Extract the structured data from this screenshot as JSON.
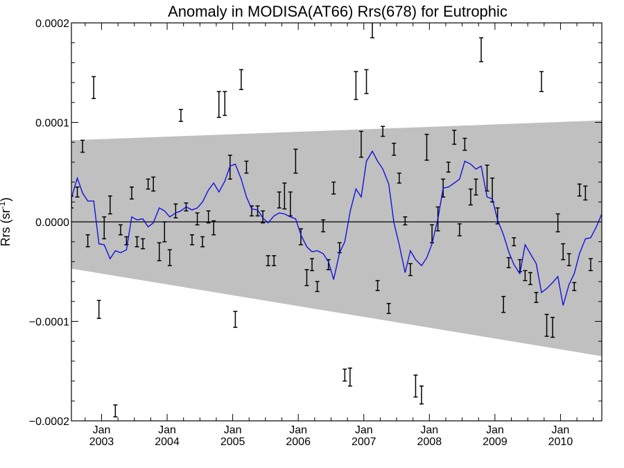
{
  "chart_data": {
    "type": "line",
    "title": "Anomaly in MODISA(AT66) Rrs(678) for Eutrophic",
    "ylabel": "Rrs (sr",
    "ylabel_sup": "-1",
    "ylabel_close": ")",
    "xlabel": "",
    "xlim": [
      2002.54,
      2010.63
    ],
    "ylim": [
      -0.0002,
      0.0002
    ],
    "y_ticks": [
      {
        "value": 0.0002,
        "label": "0.0002"
      },
      {
        "value": 0.0001,
        "label": "0.0001"
      },
      {
        "value": 0.0,
        "label": "0.0000"
      },
      {
        "value": -0.0001,
        "label": "−0.0001"
      },
      {
        "value": -0.0002,
        "label": "−0.0002"
      }
    ],
    "x_ticks": [
      {
        "value": 2003.0,
        "month": "Jan",
        "year": "2003"
      },
      {
        "value": 2004.0,
        "month": "Jan",
        "year": "2004"
      },
      {
        "value": 2005.0,
        "month": "Jan",
        "year": "2005"
      },
      {
        "value": 2006.0,
        "month": "Jan",
        "year": "2006"
      },
      {
        "value": 2007.0,
        "month": "Jan",
        "year": "2007"
      },
      {
        "value": 2008.0,
        "month": "Jan",
        "year": "2008"
      },
      {
        "value": 2009.0,
        "month": "Jan",
        "year": "2009"
      },
      {
        "value": 2010.0,
        "month": "Jan",
        "year": "2010"
      }
    ],
    "grid": false,
    "zero_line": 0.0,
    "band_color": "#c0c0c0",
    "line_color": "#1010dd",
    "errorbar_color": "#000000",
    "prediction_band": {
      "x": [
        2002.54,
        2010.63
      ],
      "upper": [
        8.2e-05,
        0.000102
      ],
      "lower": [
        -4.7e-05,
        -0.000135
      ]
    },
    "series": [
      {
        "type": "line",
        "x": [
          2002.54,
          2002.63,
          2002.71,
          2002.79,
          2002.88,
          2002.96,
          2003.04,
          2003.13,
          2003.21,
          2003.29,
          2003.38,
          2003.46,
          2003.54,
          2003.63,
          2003.71,
          2003.79,
          2003.88,
          2003.96,
          2004.04,
          2004.13,
          2004.21,
          2004.29,
          2004.38,
          2004.46,
          2004.54,
          2004.63,
          2004.71,
          2004.79,
          2004.88,
          2004.96,
          2005.04,
          2005.13,
          2005.21,
          2005.29,
          2005.38,
          2005.46,
          2005.54,
          2005.63,
          2005.71,
          2005.79,
          2005.88,
          2005.96,
          2006.04,
          2006.13,
          2006.21,
          2006.29,
          2006.38,
          2006.46,
          2006.54,
          2006.63,
          2006.71,
          2006.79,
          2006.88,
          2006.96,
          2007.04,
          2007.13,
          2007.21,
          2007.29,
          2007.38,
          2007.46,
          2007.54,
          2007.63,
          2007.71,
          2007.79,
          2007.88,
          2007.96,
          2008.04,
          2008.13,
          2008.21,
          2008.29,
          2008.38,
          2008.46,
          2008.54,
          2008.63,
          2008.71,
          2008.79,
          2008.88,
          2008.96,
          2009.04,
          2009.13,
          2009.21,
          2009.29,
          2009.38,
          2009.46,
          2009.54,
          2009.63,
          2009.71,
          2009.79,
          2009.88,
          2009.96,
          2010.04,
          2010.13,
          2010.21,
          2010.29,
          2010.38,
          2010.46,
          2010.54,
          2010.63
        ],
        "y": [
          2.4e-05,
          4.4e-05,
          2.9e-05,
          2.1e-05,
          2.1e-05,
          -2.2e-05,
          -2.3e-05,
          -3.7e-05,
          -2.9e-05,
          -3.1e-05,
          -2.8e-05,
          5e-06,
          2e-06,
          3e-06,
          -5e-06,
          -1e-06,
          1.4e-05,
          1.1e-05,
          5e-06,
          9e-06,
          1.1e-05,
          1.5e-05,
          1.2e-05,
          1.4e-05,
          2e-05,
          3.2e-05,
          3.9e-05,
          3e-05,
          4.1e-05,
          5.6e-05,
          5.8e-05,
          4.3e-05,
          2.5e-05,
          1.3e-05,
          1.2e-05,
          4e-06,
          -1e-06,
          6e-06,
          9e-06,
          8e-06,
          5e-06,
          3e-06,
          -1.3e-05,
          -2.5e-05,
          -3e-05,
          -2.9e-05,
          -3.2e-05,
          -4e-05,
          -5.8e-05,
          -3.1e-05,
          -2e-05,
          1e-05,
          3.3e-05,
          2.5e-05,
          6.1e-05,
          7.1e-05,
          6.1e-05,
          5.3e-05,
          3.8e-05,
          -1e-06,
          -2.3e-05,
          -5.1e-05,
          -2.9e-05,
          -3.8e-05,
          -4.4e-05,
          -3.6e-05,
          -2.2e-05,
          3e-06,
          3.4e-05,
          3.5e-05,
          3.9e-05,
          4.3e-05,
          6.1e-05,
          5.8e-05,
          5.3e-05,
          5.6e-05,
          2.5e-05,
          2.3e-05,
          2e-06,
          -1.3e-05,
          -3e-05,
          -4.3e-05,
          -5.2e-05,
          -2.3e-05,
          -3.2e-05,
          -4.2e-05,
          -7.1e-05,
          -6.7e-05,
          -6.1e-05,
          -5.5e-05,
          -8.4e-05,
          -6.3e-05,
          -5.2e-05,
          -3.2e-05,
          -1.7e-05,
          -1.6e-05,
          -6e-06,
          8e-06
        ]
      },
      {
        "type": "errorbar",
        "points": [
          [
            2002.54,
            2e-05,
            6e-06
          ],
          [
            2002.63,
            3e-05,
            5e-06
          ],
          [
            2002.71,
            7.6e-05,
            6e-06
          ],
          [
            2002.79,
            -1.9e-05,
            6e-06
          ],
          [
            2002.88,
            0.000135,
            1.1e-05
          ],
          [
            2002.96,
            -8.8e-05,
            9e-06
          ],
          [
            2003.04,
            -6e-06,
            1.1e-05
          ],
          [
            2003.13,
            1.7e-05,
            9e-06
          ],
          [
            2003.21,
            -0.00019,
            6e-06
          ],
          [
            2003.29,
            -8e-06,
            5e-06
          ],
          [
            2003.38,
            -1.9e-05,
            4e-06
          ],
          [
            2003.46,
            2.9e-05,
            6e-06
          ],
          [
            2003.54,
            -2e-05,
            5e-06
          ],
          [
            2003.63,
            -2.2e-05,
            5e-06
          ],
          [
            2003.71,
            3.8e-05,
            5e-06
          ],
          [
            2003.79,
            3.8e-05,
            7e-06
          ],
          [
            2003.88,
            -3e-05,
            9e-06
          ],
          [
            2003.96,
            -1e-05,
            1e-05
          ],
          [
            2004.04,
            -3.6e-05,
            8e-06
          ],
          [
            2004.13,
            1.1e-05,
            7e-06
          ],
          [
            2004.21,
            0.000107,
            6e-06
          ],
          [
            2004.29,
            1.5e-05,
            4e-06
          ],
          [
            2004.38,
            -1.8e-05,
            5e-06
          ],
          [
            2004.46,
            3e-06,
            6e-06
          ],
          [
            2004.54,
            -2e-05,
            5e-06
          ],
          [
            2004.63,
            5e-06,
            6e-06
          ],
          [
            2004.71,
            -6e-06,
            7e-06
          ],
          [
            2004.79,
            0.000118,
            1.3e-05
          ],
          [
            2004.88,
            0.000119,
            1.2e-05
          ],
          [
            2004.96,
            5.5e-05,
            1.2e-05
          ],
          [
            2005.04,
            -9.8e-05,
            8e-06
          ],
          [
            2005.13,
            0.000143,
            1e-05
          ],
          [
            2005.21,
            5.5e-05,
            6e-06
          ],
          [
            2005.29,
            1.1e-05,
            5e-06
          ],
          [
            2005.38,
            1.1e-05,
            5e-06
          ],
          [
            2005.46,
            5e-06,
            6e-06
          ],
          [
            2005.54,
            -3.9e-05,
            5e-06
          ],
          [
            2005.63,
            -3.9e-05,
            5e-06
          ],
          [
            2005.71,
            2.2e-05,
            8e-06
          ],
          [
            2005.79,
            2.6e-05,
            1.3e-05
          ],
          [
            2005.88,
            1.8e-05,
            1.2e-05
          ],
          [
            2005.96,
            6.1e-05,
            1.2e-05
          ],
          [
            2006.04,
            -1.5e-05,
            8e-06
          ],
          [
            2006.13,
            -5.6e-05,
            8e-06
          ],
          [
            2006.21,
            -4.3e-05,
            6e-06
          ],
          [
            2006.29,
            -6.5e-05,
            5e-06
          ],
          [
            2006.38,
            -4e-06,
            6e-06
          ],
          [
            2006.46,
            -4.3e-05,
            5e-06
          ],
          [
            2006.54,
            3.4e-05,
            6e-06
          ],
          [
            2006.63,
            -2.6e-05,
            5e-06
          ],
          [
            2006.71,
            -0.000154,
            6e-06
          ],
          [
            2006.79,
            -0.000156,
            9e-06
          ],
          [
            2006.88,
            0.000137,
            1.4e-05
          ],
          [
            2006.96,
            7.8e-05,
            1.3e-05
          ],
          [
            2007.04,
            0.000141,
            1.2e-05
          ],
          [
            2007.13,
            0.000195,
            1e-05
          ],
          [
            2007.21,
            -6.4e-05,
            5e-06
          ],
          [
            2007.29,
            9.1e-05,
            5e-06
          ],
          [
            2007.38,
            -8.7e-05,
            5e-06
          ],
          [
            2007.46,
            7.3e-05,
            6e-06
          ],
          [
            2007.54,
            4.4e-05,
            5e-06
          ],
          [
            2007.63,
            1e-06,
            4e-06
          ],
          [
            2007.71,
            -4.8e-05,
            6e-06
          ],
          [
            2007.79,
            -0.000165,
            1.1e-05
          ],
          [
            2007.88,
            -0.000174,
            9e-06
          ],
          [
            2007.96,
            7.5e-05,
            1.3e-05
          ],
          [
            2008.04,
            -1.2e-05,
            9e-06
          ],
          [
            2008.13,
            3e-06,
            1.2e-05
          ],
          [
            2008.21,
            3.4e-05,
            9e-06
          ],
          [
            2008.29,
            5.5e-05,
            5e-06
          ],
          [
            2008.38,
            8.5e-05,
            7e-06
          ],
          [
            2008.46,
            -8e-06,
            6e-06
          ],
          [
            2008.54,
            7.8e-05,
            6e-06
          ],
          [
            2008.63,
            2.5e-05,
            8e-06
          ],
          [
            2008.71,
            3.5e-05,
            8e-06
          ],
          [
            2008.79,
            0.000173,
            1.2e-05
          ],
          [
            2008.88,
            4.4e-05,
            1.3e-05
          ],
          [
            2008.96,
            3.2e-05,
            1.2e-05
          ],
          [
            2009.04,
            6e-06,
            8e-06
          ],
          [
            2009.13,
            -8.3e-05,
            8e-06
          ],
          [
            2009.21,
            -4.1e-05,
            5e-06
          ],
          [
            2009.29,
            -2e-05,
            4e-06
          ],
          [
            2009.38,
            -4.4e-05,
            6e-06
          ],
          [
            2009.46,
            -5.4e-05,
            5e-06
          ],
          [
            2009.54,
            -5.7e-05,
            6e-06
          ],
          [
            2009.63,
            -7.6e-05,
            5e-06
          ],
          [
            2009.71,
            0.000141,
            1e-05
          ],
          [
            2009.79,
            -0.000104,
            1.1e-05
          ],
          [
            2009.88,
            -0.000106,
            1e-05
          ],
          [
            2009.96,
            -1e-06,
            9e-06
          ],
          [
            2010.04,
            -3e-05,
            8e-06
          ],
          [
            2010.13,
            -3.8e-05,
            6e-06
          ],
          [
            2010.21,
            -6.5e-05,
            4e-06
          ],
          [
            2010.29,
            3.2e-05,
            6e-06
          ],
          [
            2010.38,
            2.9e-05,
            7e-06
          ],
          [
            2010.46,
            -4.3e-05,
            6e-06
          ]
        ]
      }
    ]
  }
}
